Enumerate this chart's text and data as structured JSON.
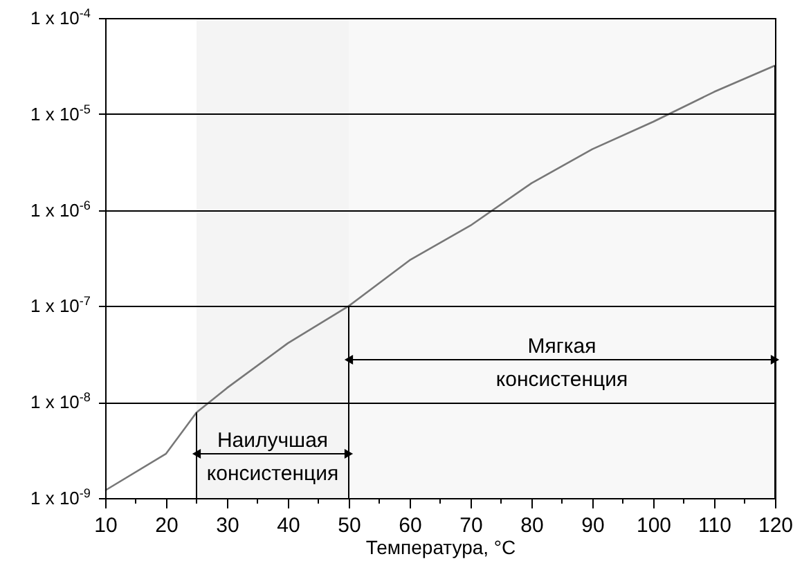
{
  "chart_data": {
    "type": "line",
    "xlabel": "Температура, °C",
    "x": [
      10,
      20,
      25,
      30,
      40,
      50,
      60,
      70,
      80,
      90,
      100,
      110,
      120
    ],
    "series": [
      {
        "color": "#777777",
        "values": [
          1.2e-09,
          2.9e-09,
          7.8e-09,
          1.4e-08,
          4.1e-08,
          1e-07,
          3e-07,
          6.9e-07,
          1.9e-06,
          4.3e-06,
          8.3e-06,
          1.7e-05,
          3.2e-05
        ]
      }
    ],
    "log": "y",
    "ylim": [
      1e-09,
      0.0001
    ],
    "yticks": [
      {
        "value": 1e-09,
        "label": "1 x 10$^{-9}$"
      },
      {
        "value": 1e-08,
        "label": "1 x 10$^{-8}$"
      },
      {
        "value": 1e-07,
        "label": "1 x 10$^{-7}$"
      },
      {
        "value": 1e-06,
        "label": "1 x 10$^{-6}$"
      },
      {
        "value": 1e-05,
        "label": "1 x 10$^{-5}$"
      },
      {
        "value": 0.0001,
        "label": "1 x 10$^{-4}$"
      }
    ],
    "xlim": [
      10,
      120
    ],
    "xticks": [
      10,
      {
        "value": 15,
        "label": null
      },
      20,
      {
        "value": 25,
        "label": null
      },
      30,
      {
        "value": 35,
        "label": null
      },
      40,
      {
        "value": 45,
        "label": null
      },
      50,
      {
        "value": 55,
        "label": null
      },
      60,
      {
        "value": 65,
        "label": null
      },
      70,
      {
        "value": 75,
        "label": null
      },
      80,
      {
        "value": 85,
        "label": null
      },
      90,
      {
        "value": 95,
        "label": null
      },
      100,
      {
        "value": 105,
        "label": null
      },
      110,
      {
        "value": 115,
        "label": null
      },
      120
    ],
    "bands": [
      {
        "axis": "x",
        "from": 25,
        "to": 50,
        "label": "Наилучшая консистенция",
        "color": "#f4f4f4"
      },
      {
        "axis": "x",
        "from": 50,
        "to": 120,
        "label": "Мягкая консистенция",
        "color": "#f8f8f8"
      }
    ],
    "grid": "y",
    "marker": "none",
    "line_style": "solid"
  }
}
